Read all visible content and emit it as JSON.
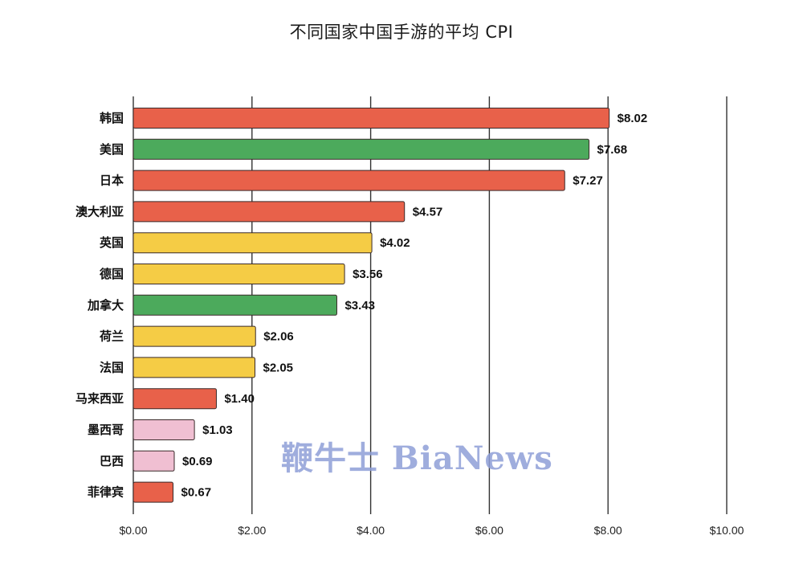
{
  "chart_data": {
    "type": "bar",
    "orientation": "horizontal",
    "title": "不同国家中国手游的平均 CPI",
    "xlabel": "",
    "ylabel": "",
    "xlim": [
      0,
      10
    ],
    "x_ticks": [
      0,
      2,
      4,
      6,
      8,
      10
    ],
    "x_tick_labels": [
      "$0.00",
      "$2.00",
      "$4.00",
      "$6.00",
      "$8.00",
      "$10.00"
    ],
    "grid": "vertical",
    "categories": [
      "韩国",
      "美国",
      "日本",
      "澳大利亚",
      "英国",
      "德国",
      "加拿大",
      "荷兰",
      "法国",
      "马来西亚",
      "墨西哥",
      "巴西",
      "菲律宾"
    ],
    "values": [
      8.02,
      7.68,
      7.27,
      4.57,
      4.02,
      3.56,
      3.43,
      2.06,
      2.05,
      1.4,
      1.03,
      0.69,
      0.67
    ],
    "data_labels": [
      "$8.02",
      "$7.68",
      "$7.27",
      "$4.57",
      "$4.02",
      "$3.56",
      "$3.43",
      "$2.06",
      "$2.05",
      "$1.40",
      "$1.03",
      "$0.69",
      "$0.67"
    ],
    "bar_colors": [
      "#e8614a",
      "#4caa5c",
      "#e8614a",
      "#e8614a",
      "#f5cc45",
      "#f5cc45",
      "#4caa5c",
      "#f5cc45",
      "#f5cc45",
      "#e8614a",
      "#f0bfd2",
      "#f0bfd2",
      "#e8614a"
    ]
  },
  "watermark": "鞭牛士 BiaNews"
}
